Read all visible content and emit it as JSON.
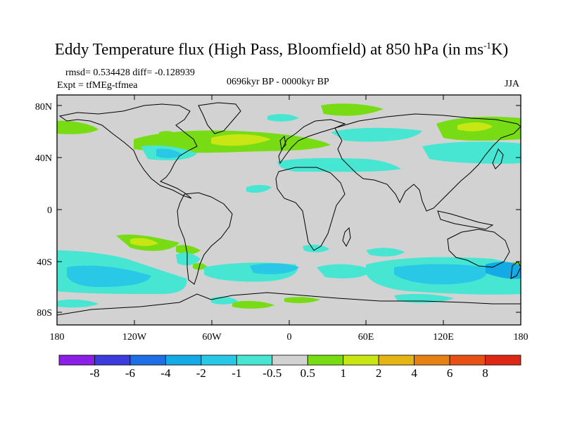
{
  "title": {
    "main": "Eddy Temperature flux (High Pass, Bloomfield) at 850 hPa (in ms",
    "sup": "-1",
    "tail": "K)"
  },
  "stats": {
    "rmsd": "rmsd= 0.534428 diff= -0.128939",
    "expt": "Expt = tfMEg-tfmea"
  },
  "period": "0696kyr BP - 0000kyr BP",
  "season": "JJA",
  "lat_labels": [
    "80N",
    "40N",
    "0",
    "40S",
    "80S"
  ],
  "lon_labels": [
    "180",
    "120W",
    "60W",
    "0",
    "60E",
    "120E",
    "180"
  ],
  "colorbar": {
    "labels": [
      "-8",
      "-6",
      "-4",
      "-2",
      "-1",
      "-0.5",
      "0.5",
      "1",
      "2",
      "4",
      "6",
      "8"
    ],
    "colors": [
      "#8c1ee6",
      "#3c3cdc",
      "#1e6ee6",
      "#14aae6",
      "#28c8e6",
      "#46e6d2",
      "#d2d2d2",
      "#78dc14",
      "#c8e614",
      "#e6b414",
      "#e68214",
      "#e65014",
      "#dc2814"
    ]
  },
  "colors": {
    "background_field": "#d2d2d2",
    "pos_1": "#78dc14",
    "pos_2": "#c8e614",
    "neg_1": "#46e6d2",
    "neg_2": "#28c8e6",
    "neg_3": "#14aae6"
  }
}
